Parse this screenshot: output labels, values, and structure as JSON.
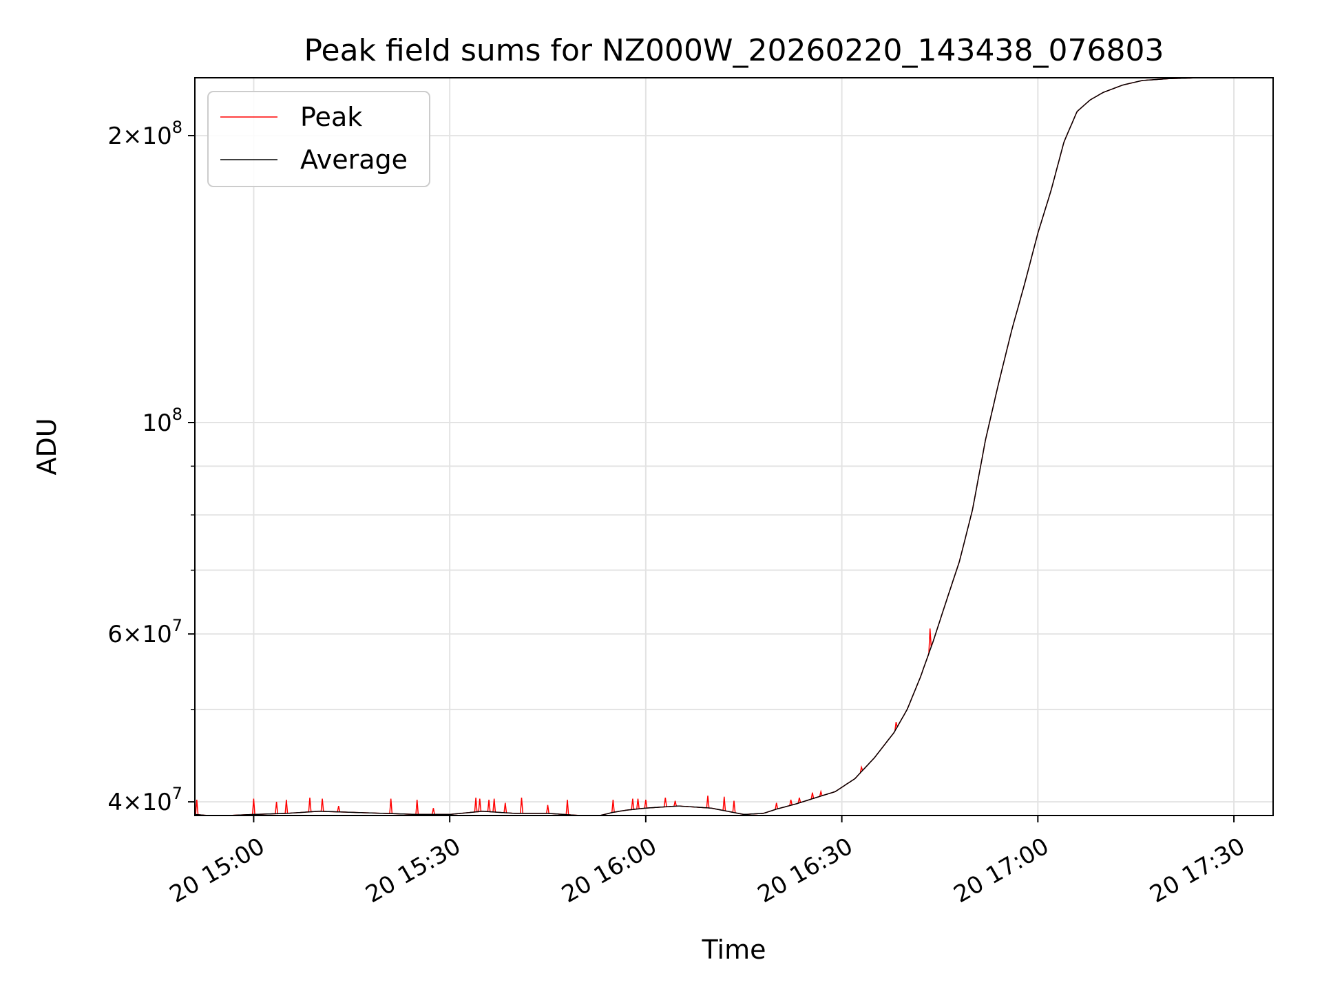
{
  "chart_data": {
    "type": "line",
    "title": "Peak field sums for NZ000W_20260220_143438_076803",
    "xlabel": "Time",
    "ylabel": "ADU",
    "yscale": "log",
    "ylim": [
      38700000,
      230000000
    ],
    "xlim_minutes": [
      891,
      1056
    ],
    "x_unit": "minutes after 00:00 on day 20",
    "grid": true,
    "legend_position": "upper-left",
    "x_ticks": [
      {
        "value": 900,
        "label": "20 15:00"
      },
      {
        "value": 930,
        "label": "20 15:30"
      },
      {
        "value": 960,
        "label": "20 16:00"
      },
      {
        "value": 990,
        "label": "20 16:30"
      },
      {
        "value": 1020,
        "label": "20 17:00"
      },
      {
        "value": 1050,
        "label": "20 17:30"
      }
    ],
    "y_ticks": [
      {
        "value": 40000000,
        "mant": "4",
        "exp": "7"
      },
      {
        "value": 60000000,
        "mant": "6",
        "exp": "7"
      },
      {
        "value": 100000000,
        "mant": "",
        "exp": "8"
      },
      {
        "value": 200000000,
        "mant": "2",
        "exp": "8"
      }
    ],
    "y_minor_ticks": [
      50000000,
      70000000,
      80000000,
      90000000
    ],
    "series": [
      {
        "name": "Average",
        "color": "#000000",
        "x": [
          891,
          893,
          896,
          900,
          905,
          910,
          915,
          920,
          925,
          930,
          935,
          940,
          945,
          950,
          953,
          955,
          957,
          960,
          965,
          970,
          975,
          978,
          980,
          983,
          986,
          989,
          992,
          995,
          998,
          1000,
          1002,
          1004,
          1006,
          1008,
          1010,
          1012,
          1014,
          1016,
          1018,
          1020,
          1022,
          1024,
          1026,
          1028,
          1030,
          1033,
          1036,
          1040,
          1045,
          1050,
          1056
        ],
        "y": [
          38800000,
          38700000,
          38700000,
          38800000,
          38900000,
          39100000,
          39000000,
          38900000,
          38800000,
          38800000,
          39100000,
          38900000,
          38900000,
          38700000,
          38700000,
          39000000,
          39200000,
          39400000,
          39600000,
          39400000,
          38800000,
          38900000,
          39300000,
          39800000,
          40400000,
          41000000,
          42300000,
          44500000,
          47300000,
          50000000,
          54000000,
          59000000,
          65000000,
          71500000,
          81000000,
          96000000,
          110000000,
          125000000,
          140000000,
          158000000,
          175000000,
          197000000,
          212000000,
          218000000,
          222000000,
          226000000,
          228500000,
          229500000,
          230000000,
          230000000,
          230000000
        ]
      },
      {
        "name": "Peak",
        "color": "#ff0000",
        "spikes": [
          {
            "x": 891.3,
            "y": 40200000
          },
          {
            "x": 900.0,
            "y": 40300000
          },
          {
            "x": 903.5,
            "y": 40000000
          },
          {
            "x": 905.0,
            "y": 40200000
          },
          {
            "x": 908.6,
            "y": 40400000
          },
          {
            "x": 910.5,
            "y": 40300000
          },
          {
            "x": 913.0,
            "y": 39600000
          },
          {
            "x": 921.0,
            "y": 40300000
          },
          {
            "x": 925.0,
            "y": 40200000
          },
          {
            "x": 927.5,
            "y": 39400000
          },
          {
            "x": 934.0,
            "y": 40400000
          },
          {
            "x": 934.6,
            "y": 40300000
          },
          {
            "x": 936.0,
            "y": 40200000
          },
          {
            "x": 936.8,
            "y": 40300000
          },
          {
            "x": 938.5,
            "y": 39900000
          },
          {
            "x": 941.0,
            "y": 40400000
          },
          {
            "x": 945.0,
            "y": 39700000
          },
          {
            "x": 948.0,
            "y": 40200000
          },
          {
            "x": 955.0,
            "y": 40200000
          },
          {
            "x": 958.0,
            "y": 40300000
          },
          {
            "x": 958.8,
            "y": 40300000
          },
          {
            "x": 960.0,
            "y": 40200000
          },
          {
            "x": 963.0,
            "y": 40400000
          },
          {
            "x": 964.5,
            "y": 40100000
          },
          {
            "x": 969.5,
            "y": 40600000
          },
          {
            "x": 972.0,
            "y": 40500000
          },
          {
            "x": 973.5,
            "y": 40100000
          },
          {
            "x": 980.0,
            "y": 39900000
          },
          {
            "x": 982.2,
            "y": 40200000
          },
          {
            "x": 983.5,
            "y": 40400000
          },
          {
            "x": 985.5,
            "y": 40900000
          },
          {
            "x": 986.8,
            "y": 41000000
          },
          {
            "x": 993.0,
            "y": 43500000
          },
          {
            "x": 998.3,
            "y": 48500000
          },
          {
            "x": 1003.5,
            "y": 60800000
          }
        ]
      }
    ]
  }
}
